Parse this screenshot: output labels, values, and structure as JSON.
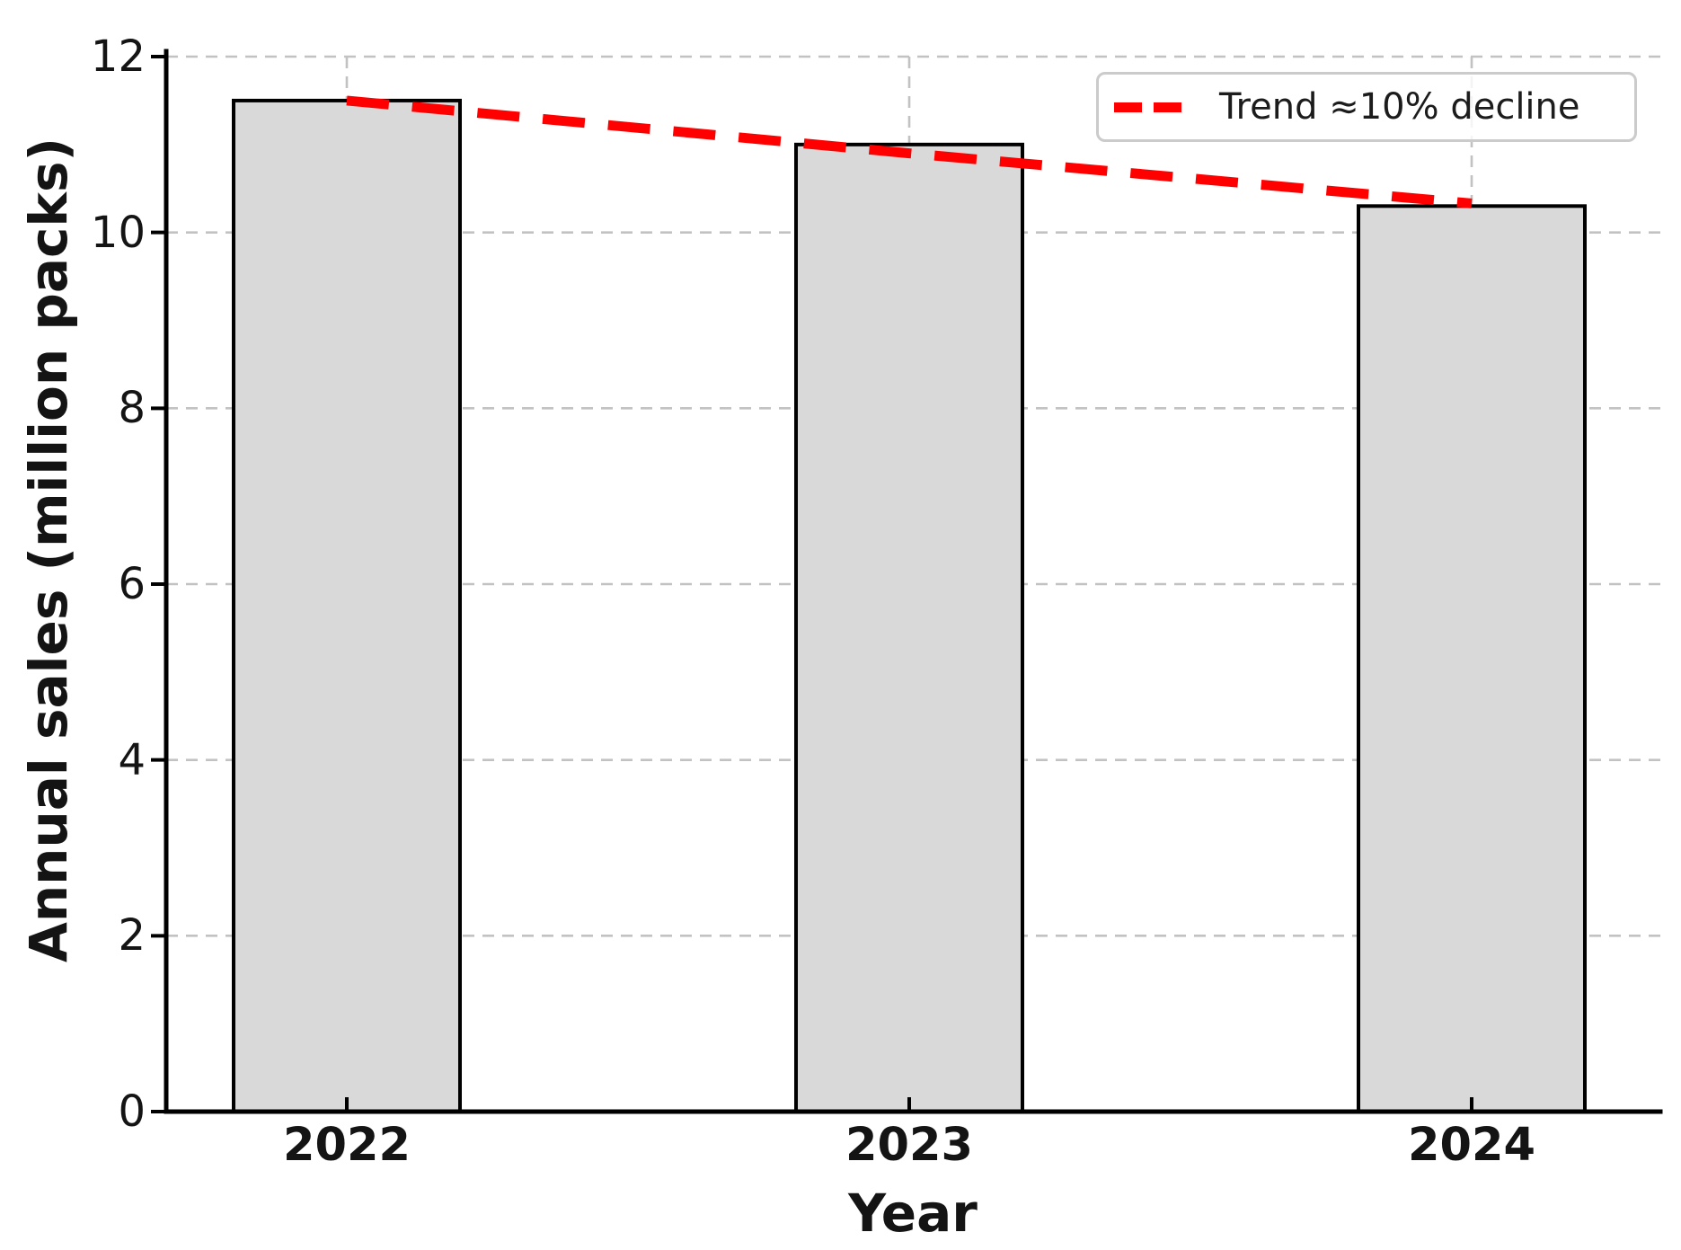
{
  "chart_data": {
    "type": "bar",
    "categories": [
      "2022",
      "2023",
      "2024"
    ],
    "values": [
      11.5,
      11.0,
      10.3
    ],
    "series": [
      {
        "name": "Trend ≈10% decline",
        "type": "line",
        "values": [
          11.5,
          10.9,
          10.33
        ]
      }
    ],
    "title": "",
    "xlabel": "Year",
    "ylabel": "Annual sales (million packs)",
    "ylim": [
      0,
      12
    ],
    "yticks": [
      0,
      2,
      4,
      6,
      8,
      10,
      12
    ],
    "grid": "dashed, horizontal at y ticks and vertical at bar centers",
    "legend_position": "upper right",
    "colors": {
      "bar_fill": "#d9d9d9",
      "bar_edge": "#000000",
      "trend_line": "#ff0000",
      "gridline": "#c2c2c2",
      "text": "#141414"
    }
  }
}
